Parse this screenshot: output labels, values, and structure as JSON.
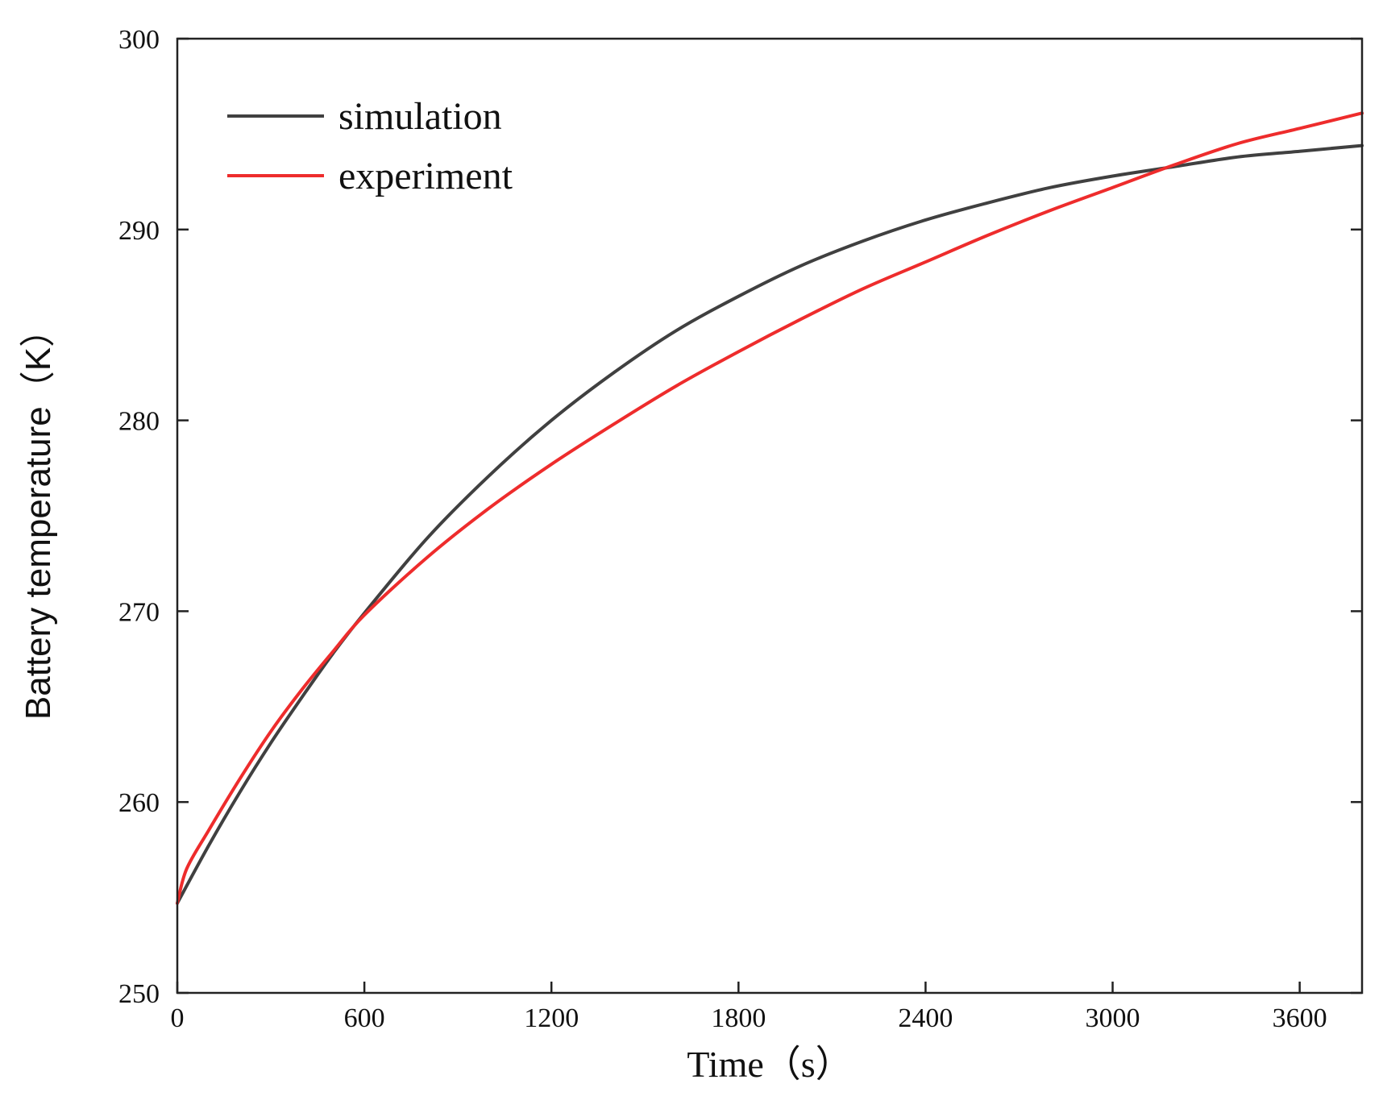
{
  "chart_data": {
    "type": "line",
    "title": "",
    "xlabel": "Time（s）",
    "ylabel": "Battery temperature（K）",
    "xlim": [
      0,
      3800
    ],
    "ylim": [
      250,
      300
    ],
    "xticks": [
      0,
      600,
      1200,
      1800,
      2400,
      3000,
      3600
    ],
    "yticks": [
      250,
      260,
      270,
      280,
      290,
      300
    ],
    "grid": false,
    "legend_position": "top-left",
    "series": [
      {
        "name": "simulation",
        "color": "#404040",
        "x": [
          0,
          100,
          200,
          300,
          400,
          500,
          600,
          800,
          1000,
          1200,
          1400,
          1600,
          1800,
          2000,
          2200,
          2400,
          2600,
          2800,
          3000,
          3200,
          3400,
          3600,
          3800
        ],
        "y": [
          254.7,
          257.7,
          260.5,
          263.1,
          265.5,
          267.8,
          269.9,
          273.8,
          277.1,
          280.0,
          282.5,
          284.7,
          286.5,
          288.1,
          289.4,
          290.5,
          291.4,
          292.2,
          292.8,
          293.3,
          293.8,
          294.1,
          294.4
        ]
      },
      {
        "name": "experiment",
        "color": "#ee2c2c",
        "x": [
          0,
          30,
          100,
          200,
          300,
          400,
          500,
          600,
          800,
          1000,
          1200,
          1400,
          1600,
          1800,
          2000,
          2200,
          2400,
          2600,
          2800,
          3000,
          3200,
          3400,
          3600,
          3800
        ],
        "y": [
          254.7,
          256.5,
          258.5,
          261.2,
          263.7,
          265.9,
          267.9,
          269.8,
          272.8,
          275.4,
          277.7,
          279.8,
          281.8,
          283.6,
          285.3,
          286.9,
          288.3,
          289.7,
          291.0,
          292.2,
          293.4,
          294.5,
          295.3,
          296.1
        ]
      }
    ]
  }
}
